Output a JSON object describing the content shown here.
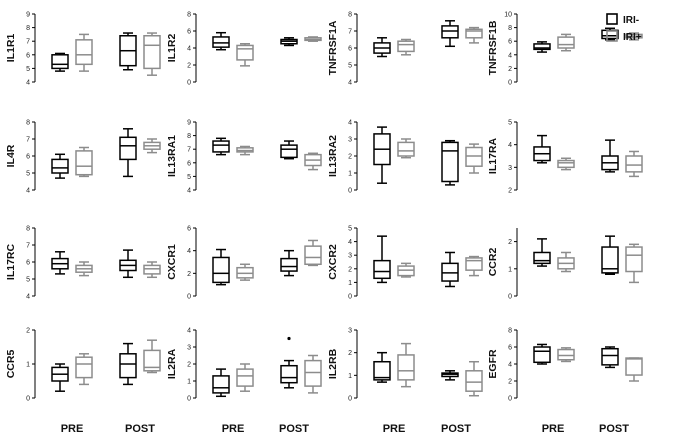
{
  "legend": [
    {
      "name": "IRI-",
      "color": "#000000"
    },
    {
      "name": "IRI+",
      "color": "#8c8c8c"
    }
  ],
  "chart_data": [
    {
      "type": "box",
      "ylabel": "IL1R1",
      "ylim": [
        4,
        9
      ],
      "yticks": [
        4,
        5,
        6,
        7,
        8,
        9
      ],
      "categories": [
        "PRE",
        "POST"
      ],
      "series": [
        {
          "name": "IRI-",
          "boxes": [
            [
              4.8,
              5.0,
              5.3,
              6.0,
              6.1
            ],
            [
              4.9,
              5.2,
              6.3,
              7.4,
              7.6
            ]
          ]
        },
        {
          "name": "IRI+",
          "boxes": [
            [
              4.8,
              5.3,
              6.0,
              7.1,
              7.5
            ],
            [
              4.5,
              5.0,
              6.7,
              7.4,
              7.6
            ]
          ]
        }
      ]
    },
    {
      "type": "box",
      "ylabel": "IL1R2",
      "ylim": [
        0,
        8
      ],
      "yticks": [
        0,
        2,
        4,
        6,
        8
      ],
      "categories": [
        "PRE",
        "POST"
      ],
      "series": [
        {
          "name": "IRI-",
          "boxes": [
            [
              3.8,
              4.1,
              4.6,
              5.3,
              5.8
            ],
            [
              4.3,
              4.5,
              4.8,
              5.0,
              5.2
            ]
          ]
        },
        {
          "name": "IRI+",
          "boxes": [
            [
              1.9,
              2.6,
              3.9,
              4.3,
              4.5
            ],
            [
              4.8,
              4.9,
              5.0,
              5.2,
              5.3
            ]
          ]
        }
      ]
    },
    {
      "type": "box",
      "ylabel": "TNFRSF1A",
      "ylim": [
        4,
        8
      ],
      "yticks": [
        4,
        5,
        6,
        7,
        8
      ],
      "categories": [
        "PRE",
        "POST"
      ],
      "series": [
        {
          "name": "IRI-",
          "boxes": [
            [
              5.5,
              5.7,
              6.0,
              6.3,
              6.6
            ],
            [
              6.1,
              6.6,
              7.0,
              7.3,
              7.6
            ]
          ]
        },
        {
          "name": "IRI+",
          "boxes": [
            [
              5.6,
              5.8,
              6.2,
              6.4,
              6.5
            ],
            [
              6.3,
              6.6,
              7.0,
              7.1,
              7.2
            ]
          ]
        }
      ]
    },
    {
      "type": "box",
      "ylabel": "TNFRSF1B",
      "ylim": [
        0,
        10
      ],
      "yticks": [
        0,
        2,
        4,
        6,
        8,
        10
      ],
      "categories": [
        "PRE",
        "POST"
      ],
      "series": [
        {
          "name": "IRI-",
          "boxes": [
            [
              4.4,
              4.8,
              5.0,
              5.6,
              5.9
            ],
            [
              6.2,
              6.4,
              6.8,
              7.6,
              7.9
            ]
          ]
        },
        {
          "name": "IRI+",
          "boxes": [
            [
              4.6,
              5.0,
              5.5,
              6.6,
              7.0
            ],
            [
              6.2,
              6.5,
              6.7,
              7.0,
              7.2
            ]
          ]
        }
      ]
    },
    {
      "type": "box",
      "ylabel": "IL4R",
      "ylim": [
        4,
        8
      ],
      "yticks": [
        4,
        5,
        6,
        7,
        8
      ],
      "categories": [
        "PRE",
        "POST"
      ],
      "series": [
        {
          "name": "IRI-",
          "boxes": [
            [
              4.7,
              5.0,
              5.3,
              5.8,
              6.1
            ],
            [
              4.8,
              5.8,
              6.6,
              7.1,
              7.6
            ]
          ]
        },
        {
          "name": "IRI+",
          "boxes": [
            [
              4.8,
              4.9,
              5.4,
              6.3,
              6.5
            ],
            [
              6.2,
              6.4,
              6.6,
              6.8,
              7.0
            ]
          ]
        }
      ]
    },
    {
      "type": "box",
      "ylabel": "IL13RA1",
      "ylim": [
        4,
        9
      ],
      "yticks": [
        4,
        5,
        6,
        7,
        8,
        9
      ],
      "categories": [
        "PRE",
        "POST"
      ],
      "series": [
        {
          "name": "IRI-",
          "boxes": [
            [
              6.6,
              6.8,
              7.3,
              7.6,
              7.8
            ],
            [
              6.3,
              6.4,
              7.0,
              7.3,
              7.6
            ]
          ]
        },
        {
          "name": "IRI+",
          "boxes": [
            [
              6.6,
              6.8,
              6.9,
              7.1,
              7.2
            ],
            [
              5.5,
              5.8,
              6.2,
              6.6,
              6.7
            ]
          ]
        }
      ]
    },
    {
      "type": "box",
      "ylabel": "IL13RA2",
      "ylim": [
        0,
        4
      ],
      "yticks": [
        0,
        1,
        2,
        3,
        4
      ],
      "categories": [
        "PRE",
        "POST"
      ],
      "series": [
        {
          "name": "IRI-",
          "boxes": [
            [
              0.4,
              1.5,
              2.4,
              3.3,
              3.7
            ],
            [
              0.3,
              0.5,
              2.3,
              2.8,
              2.9
            ]
          ]
        },
        {
          "name": "IRI+",
          "boxes": [
            [
              1.9,
              2.0,
              2.3,
              2.8,
              3.0
            ],
            [
              1.0,
              1.4,
              2.0,
              2.5,
              2.7
            ]
          ]
        }
      ]
    },
    {
      "type": "box",
      "ylabel": "IL17RA",
      "ylim": [
        2,
        5
      ],
      "yticks": [
        2,
        3,
        4,
        5
      ],
      "categories": [
        "PRE",
        "POST"
      ],
      "series": [
        {
          "name": "IRI-",
          "boxes": [
            [
              3.2,
              3.3,
              3.6,
              3.9,
              4.4
            ],
            [
              2.8,
              2.9,
              3.2,
              3.5,
              4.2
            ]
          ]
        },
        {
          "name": "IRI+",
          "boxes": [
            [
              2.9,
              3.0,
              3.2,
              3.3,
              3.4
            ],
            [
              2.6,
              2.8,
              3.1,
              3.5,
              3.7
            ]
          ]
        }
      ]
    },
    {
      "type": "box",
      "ylabel": "IL17RC",
      "ylim": [
        4,
        8
      ],
      "yticks": [
        4,
        5,
        6,
        7,
        8
      ],
      "categories": [
        "PRE",
        "POST"
      ],
      "series": [
        {
          "name": "IRI-",
          "boxes": [
            [
              5.3,
              5.6,
              5.9,
              6.2,
              6.6
            ],
            [
              5.1,
              5.5,
              5.8,
              6.1,
              6.7
            ]
          ]
        },
        {
          "name": "IRI+",
          "boxes": [
            [
              5.2,
              5.4,
              5.6,
              5.8,
              6.0
            ],
            [
              5.1,
              5.3,
              5.6,
              5.8,
              6.0
            ]
          ]
        }
      ]
    },
    {
      "type": "box",
      "ylabel": "CXCR1",
      "ylim": [
        0,
        6
      ],
      "yticks": [
        0,
        2,
        4,
        6
      ],
      "categories": [
        "PRE",
        "POST"
      ],
      "series": [
        {
          "name": "IRI-",
          "boxes": [
            [
              1.0,
              1.2,
              2.0,
              3.4,
              4.1
            ],
            [
              1.8,
              2.2,
              2.6,
              3.3,
              4.0
            ]
          ]
        },
        {
          "name": "IRI+",
          "boxes": [
            [
              1.4,
              1.6,
              2.0,
              2.5,
              2.8
            ],
            [
              2.7,
              2.8,
              3.4,
              4.4,
              4.9
            ]
          ]
        }
      ]
    },
    {
      "type": "box",
      "ylabel": "CXCR2",
      "ylim": [
        0,
        5
      ],
      "yticks": [
        0,
        1,
        2,
        3,
        4,
        5
      ],
      "categories": [
        "PRE",
        "POST"
      ],
      "series": [
        {
          "name": "IRI-",
          "boxes": [
            [
              1.0,
              1.3,
              1.8,
              2.6,
              4.4
            ],
            [
              0.7,
              1.1,
              1.7,
              2.4,
              3.2
            ]
          ]
        },
        {
          "name": "IRI+",
          "boxes": [
            [
              1.4,
              1.5,
              1.9,
              2.2,
              2.4
            ],
            [
              1.5,
              1.9,
              2.6,
              2.8,
              2.9
            ]
          ]
        }
      ]
    },
    {
      "type": "box",
      "ylabel": "CCR2",
      "ylim": [
        0,
        2.5
      ],
      "yticks": [
        0,
        1,
        2
      ],
      "categories": [
        "PRE",
        "POST"
      ],
      "series": [
        {
          "name": "IRI-",
          "boxes": [
            [
              1.1,
              1.2,
              1.3,
              1.6,
              2.1
            ],
            [
              0.8,
              0.85,
              1.0,
              1.8,
              2.2
            ]
          ]
        },
        {
          "name": "IRI+",
          "boxes": [
            [
              0.9,
              1.0,
              1.2,
              1.4,
              1.6
            ],
            [
              0.5,
              0.9,
              1.5,
              1.8,
              1.9
            ]
          ]
        }
      ]
    },
    {
      "type": "box",
      "ylabel": "CCR5",
      "ylim": [
        0,
        2
      ],
      "yticks": [
        0,
        1,
        2
      ],
      "categories": [
        "PRE",
        "POST"
      ],
      "series": [
        {
          "name": "IRI-",
          "boxes": [
            [
              0.2,
              0.5,
              0.7,
              0.9,
              1.0
            ],
            [
              0.4,
              0.6,
              1.0,
              1.3,
              1.6
            ]
          ]
        },
        {
          "name": "IRI+",
          "boxes": [
            [
              0.4,
              0.6,
              1.0,
              1.2,
              1.3
            ],
            [
              0.75,
              0.8,
              0.9,
              1.4,
              1.7
            ]
          ]
        }
      ]
    },
    {
      "type": "box",
      "ylabel": "IL2RA",
      "ylim": [
        0,
        4
      ],
      "yticks": [
        0,
        1,
        2,
        3,
        4
      ],
      "categories": [
        "PRE",
        "POST"
      ],
      "series": [
        {
          "name": "IRI-",
          "boxes": [
            [
              0.1,
              0.3,
              0.6,
              1.3,
              1.7
            ],
            [
              0.6,
              0.9,
              1.2,
              1.9,
              2.2
            ]
          ]
        },
        {
          "name": "IRI+",
          "boxes": [
            [
              0.4,
              0.7,
              1.3,
              1.7,
              2.0
            ],
            [
              0.3,
              0.7,
              1.5,
              2.2,
              2.5
            ]
          ],
          "outliers": []
        }
      ],
      "outliers": [
        {
          "series": "IRI-",
          "category": "POST",
          "value": 3.5
        }
      ]
    },
    {
      "type": "box",
      "ylabel": "IL2RB",
      "ylim": [
        0,
        3
      ],
      "yticks": [
        0,
        1,
        2,
        3
      ],
      "categories": [
        "PRE",
        "POST"
      ],
      "series": [
        {
          "name": "IRI-",
          "boxes": [
            [
              0.7,
              0.8,
              0.9,
              1.6,
              2.0
            ],
            [
              0.8,
              0.95,
              1.05,
              1.1,
              1.2
            ]
          ]
        },
        {
          "name": "IRI+",
          "boxes": [
            [
              0.5,
              0.8,
              1.2,
              1.9,
              2.4
            ],
            [
              0.1,
              0.3,
              0.7,
              1.2,
              1.6
            ]
          ]
        }
      ]
    },
    {
      "type": "box",
      "ylabel": "EGFR",
      "ylim": [
        0,
        8
      ],
      "yticks": [
        0,
        2,
        4,
        6,
        8
      ],
      "categories": [
        "PRE",
        "POST"
      ],
      "series": [
        {
          "name": "IRI-",
          "boxes": [
            [
              4.0,
              4.2,
              5.5,
              6.0,
              6.3
            ],
            [
              3.6,
              3.9,
              5.0,
              5.8,
              6.0
            ]
          ]
        },
        {
          "name": "IRI+",
          "boxes": [
            [
              4.3,
              4.5,
              5.0,
              5.7,
              5.9
            ],
            [
              2.0,
              2.7,
              4.6,
              4.7,
              4.7
            ]
          ]
        }
      ]
    }
  ]
}
